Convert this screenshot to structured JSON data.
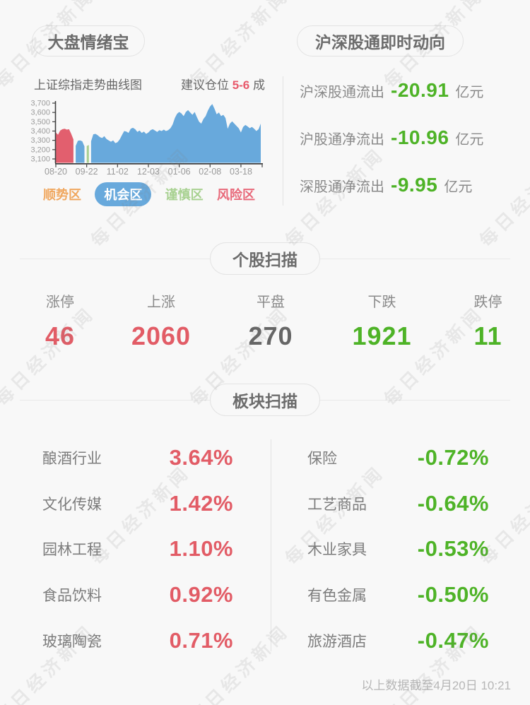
{
  "watermark": {
    "text": "每日经济新闻"
  },
  "header": {
    "left_badge": "大盘情绪宝",
    "right_badge": "沪深股通即时动向"
  },
  "market_chart": {
    "title": "上证综指走势曲线图",
    "advice_prefix": "建议仓位",
    "advice_value": "5-6",
    "advice_suffix": "成",
    "legend": [
      {
        "label": "顺势区",
        "color": "#f0a75e",
        "active": false
      },
      {
        "label": "机会区",
        "color": "#68a9dc",
        "active": true
      },
      {
        "label": "谨慎区",
        "color": "#a8d191",
        "active": false
      },
      {
        "label": "风险区",
        "color": "#e8697a",
        "active": false
      }
    ]
  },
  "chart_data": {
    "type": "area",
    "title": "上证综指走势曲线图",
    "x_tick_labels": [
      "08-20",
      "09-22",
      "11-02",
      "12-03",
      "01-06",
      "02-08",
      "03-18"
    ],
    "x_tick_indices": [
      0,
      14,
      28,
      42,
      56,
      70,
      84
    ],
    "y_ticks": [
      3100,
      3200,
      3300,
      3400,
      3500,
      3600,
      3700
    ],
    "y_tick_labels": [
      "3,100",
      "3,200",
      "3,300",
      "3,400",
      "3,500",
      "3,600",
      "3,700"
    ],
    "ylim": [
      3055,
      3700
    ],
    "grid": false,
    "zone_colors": {
      "risk": "#e25f6e",
      "opportunity": "#68a9dc",
      "caution": "#a9cf92"
    },
    "zone_runs": [
      {
        "zone": "risk",
        "from": 0,
        "to": 8
      },
      {
        "zone": "opportunity",
        "from": 9,
        "to": 13
      },
      {
        "zone": "caution",
        "from": 14,
        "to": 15
      },
      {
        "zone": "opportunity",
        "from": 16,
        "to": 93
      }
    ],
    "values": [
      3385,
      3360,
      3405,
      3420,
      3425,
      3415,
      3420,
      3370,
      3310,
      3240,
      3295,
      3300,
      3290,
      3235,
      3240,
      3250,
      3290,
      3365,
      3370,
      3355,
      3335,
      3325,
      3345,
      3315,
      3300,
      3285,
      3300,
      3270,
      3280,
      3310,
      3355,
      3400,
      3395,
      3380,
      3425,
      3435,
      3420,
      3390,
      3405,
      3380,
      3395,
      3370,
      3385,
      3410,
      3420,
      3405,
      3390,
      3410,
      3400,
      3415,
      3400,
      3410,
      3430,
      3470,
      3540,
      3585,
      3605,
      3590,
      3560,
      3605,
      3625,
      3600,
      3575,
      3605,
      3550,
      3500,
      3480,
      3530,
      3560,
      3620,
      3665,
      3690,
      3640,
      3580,
      3600,
      3560,
      3575,
      3540,
      3425,
      3480,
      3505,
      3480,
      3455,
      3430,
      3385,
      3445,
      3465,
      3450,
      3430,
      3445,
      3425,
      3400,
      3420,
      3480
    ]
  },
  "northbound": {
    "rows": [
      {
        "label": "沪深股通流出",
        "value": "-20.91",
        "unit": "亿元"
      },
      {
        "label": "沪股通净流出",
        "value": "-10.96",
        "unit": "亿元"
      },
      {
        "label": "深股通净流出",
        "value": "-9.95",
        "unit": "亿元"
      }
    ]
  },
  "stock_scan": {
    "section_title": "个股扫描",
    "items": [
      {
        "label": "涨停",
        "value": "46",
        "color": "#e25c66"
      },
      {
        "label": "上涨",
        "value": "2060",
        "color": "#e25c66"
      },
      {
        "label": "平盘",
        "value": "270",
        "color": "#666666"
      },
      {
        "label": "下跌",
        "value": "1921",
        "color": "#4eb327"
      },
      {
        "label": "跌停",
        "value": "11",
        "color": "#4eb327"
      }
    ]
  },
  "sector_scan": {
    "section_title": "板块扫描",
    "gainers": [
      {
        "name": "酿酒行业",
        "change": "3.64%"
      },
      {
        "name": "文化传媒",
        "change": "1.42%"
      },
      {
        "name": "园林工程",
        "change": "1.10%"
      },
      {
        "name": "食品饮料",
        "change": "0.92%"
      },
      {
        "name": "玻璃陶瓷",
        "change": "0.71%"
      }
    ],
    "losers": [
      {
        "name": "保险",
        "change": "-0.72%"
      },
      {
        "name": "工艺商品",
        "change": "-0.64%"
      },
      {
        "name": "木业家具",
        "change": "-0.53%"
      },
      {
        "name": "有色金属",
        "change": "-0.50%"
      },
      {
        "name": "旅游酒店",
        "change": "-0.47%"
      }
    ]
  },
  "footer": {
    "note": "以上数据截至4月20日 10:21"
  },
  "colors": {
    "background": "#f8f8f8",
    "up_red": "#e25c66",
    "down_green": "#4eb327",
    "neutral_gray": "#666666",
    "label_gray": "#8a8a8a",
    "accent_red": "#e8586a",
    "axis": "#3f3f3f"
  }
}
